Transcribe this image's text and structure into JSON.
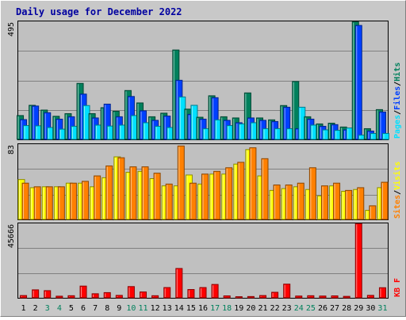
{
  "chart_data": [
    {
      "type": "bar",
      "title": "Daily usage for December 2022",
      "categories": [
        "1",
        "2",
        "3",
        "4",
        "5",
        "6",
        "7",
        "8",
        "9",
        "10",
        "11",
        "12",
        "13",
        "14",
        "15",
        "16",
        "17",
        "18",
        "19",
        "20",
        "21",
        "22",
        "23",
        "24",
        "25",
        "26",
        "27",
        "28",
        "29",
        "30",
        "31"
      ],
      "weekend_categories": [
        "3",
        "4",
        "10",
        "11",
        "17",
        "18",
        "24",
        "25",
        "31"
      ],
      "ymax_label": "495",
      "ylim": [
        0,
        495
      ],
      "series": [
        {
          "name": "Hits",
          "color": "#00805c",
          "values": [
            100,
            143,
            123,
            97,
            108,
            235,
            108,
            133,
            118,
            205,
            153,
            95,
            110,
            375,
            127,
            93,
            183,
            95,
            90,
            195,
            90,
            82,
            142,
            243,
            95,
            65,
            68,
            52,
            493,
            45,
            125
          ]
        },
        {
          "name": "Files",
          "color": "#0040ff",
          "values": [
            83,
            140,
            112,
            85,
            95,
            190,
            90,
            148,
            95,
            180,
            120,
            80,
            98,
            248,
            105,
            85,
            175,
            80,
            70,
            90,
            80,
            75,
            135,
            45,
            85,
            55,
            62,
            40,
            478,
            35,
            115
          ]
        },
        {
          "name": "Pages",
          "color": "#00e0ff",
          "values": [
            58,
            57,
            50,
            43,
            55,
            142,
            60,
            56,
            60,
            100,
            70,
            55,
            50,
            178,
            143,
            45,
            82,
            58,
            65,
            70,
            45,
            45,
            45,
            135,
            60,
            40,
            38,
            48,
            18,
            25,
            25
          ]
        }
      ],
      "legend_separators": [
        "/",
        "/"
      ]
    },
    {
      "type": "bar",
      "ymax_label": "83",
      "ylim": [
        0,
        83
      ],
      "series": [
        {
          "name": "Visits",
          "color": "#ffff00",
          "values": [
            44,
            35,
            36,
            36,
            40,
            40,
            36,
            46,
            69,
            52,
            53,
            45,
            37,
            37,
            49,
            39,
            50,
            50,
            61,
            77,
            48,
            32,
            34,
            36,
            33,
            26,
            37,
            31,
            33,
            10,
            35
          ]
        },
        {
          "name": "Sites",
          "color": "#ff8000",
          "values": [
            40,
            36,
            36,
            36,
            40,
            42,
            48,
            59,
            68,
            58,
            58,
            51,
            39,
            81,
            40,
            50,
            53,
            57,
            63,
            79,
            67,
            38,
            38,
            40,
            57,
            37,
            40,
            32,
            35,
            15,
            41
          ]
        }
      ],
      "legend_separators": [
        "/"
      ]
    },
    {
      "type": "bar",
      "ymax_label": "45666",
      "ylim": [
        0,
        45666
      ],
      "series": [
        {
          "name": "KB F",
          "color": "#ff0000",
          "values": [
            1400,
            4900,
            4400,
            1000,
            1300,
            7200,
            2500,
            3200,
            1500,
            6900,
            3600,
            1300,
            6300,
            18000,
            5100,
            6300,
            8200,
            1200,
            700,
            800,
            1400,
            3400,
            8400,
            1100,
            1300,
            1100,
            1200,
            900,
            45500,
            1500,
            6200
          ]
        }
      ]
    }
  ]
}
